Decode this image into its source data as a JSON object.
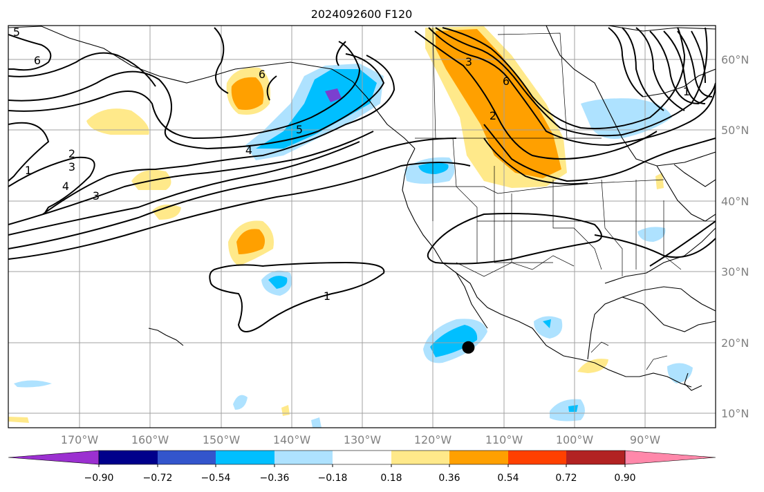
{
  "title": "2024092600 F120",
  "map": {
    "lat_labels": [
      "60°N",
      "50°N",
      "40°N",
      "30°N",
      "20°N",
      "10°N"
    ],
    "lon_labels": [
      "170°W",
      "160°W",
      "150°W",
      "140°W",
      "130°W",
      "120°W",
      "110°W",
      "100°W",
      "90°W"
    ],
    "gridlines": true,
    "center_marker": {
      "lon": -115,
      "lat": 19.3
    }
  },
  "contour_labels": [
    "5",
    "6",
    "6",
    "3",
    "6",
    "2",
    "5",
    "4",
    "2",
    "1",
    "3",
    "4",
    "3",
    "1",
    "1"
  ],
  "colorbar": {
    "ticks": [
      "−0.90",
      "−0.72",
      "−0.54",
      "−0.36",
      "−0.18",
      "0.18",
      "0.36",
      "0.54",
      "0.72",
      "0.90"
    ],
    "colors": [
      "#9b30d0",
      "#00008b",
      "#3355cc",
      "#00bfff",
      "#aee2ff",
      "#ffffff",
      "#ffe98a",
      "#ffa000",
      "#ff4000",
      "#b22222",
      "#ff88aa"
    ]
  },
  "fill_colors": {
    "neg_light": "#aee2ff",
    "neg_mid": "#00bfff",
    "neg_dark": "#7b3fcf",
    "pos_light": "#ffe98a",
    "pos_mid": "#ffa000"
  }
}
